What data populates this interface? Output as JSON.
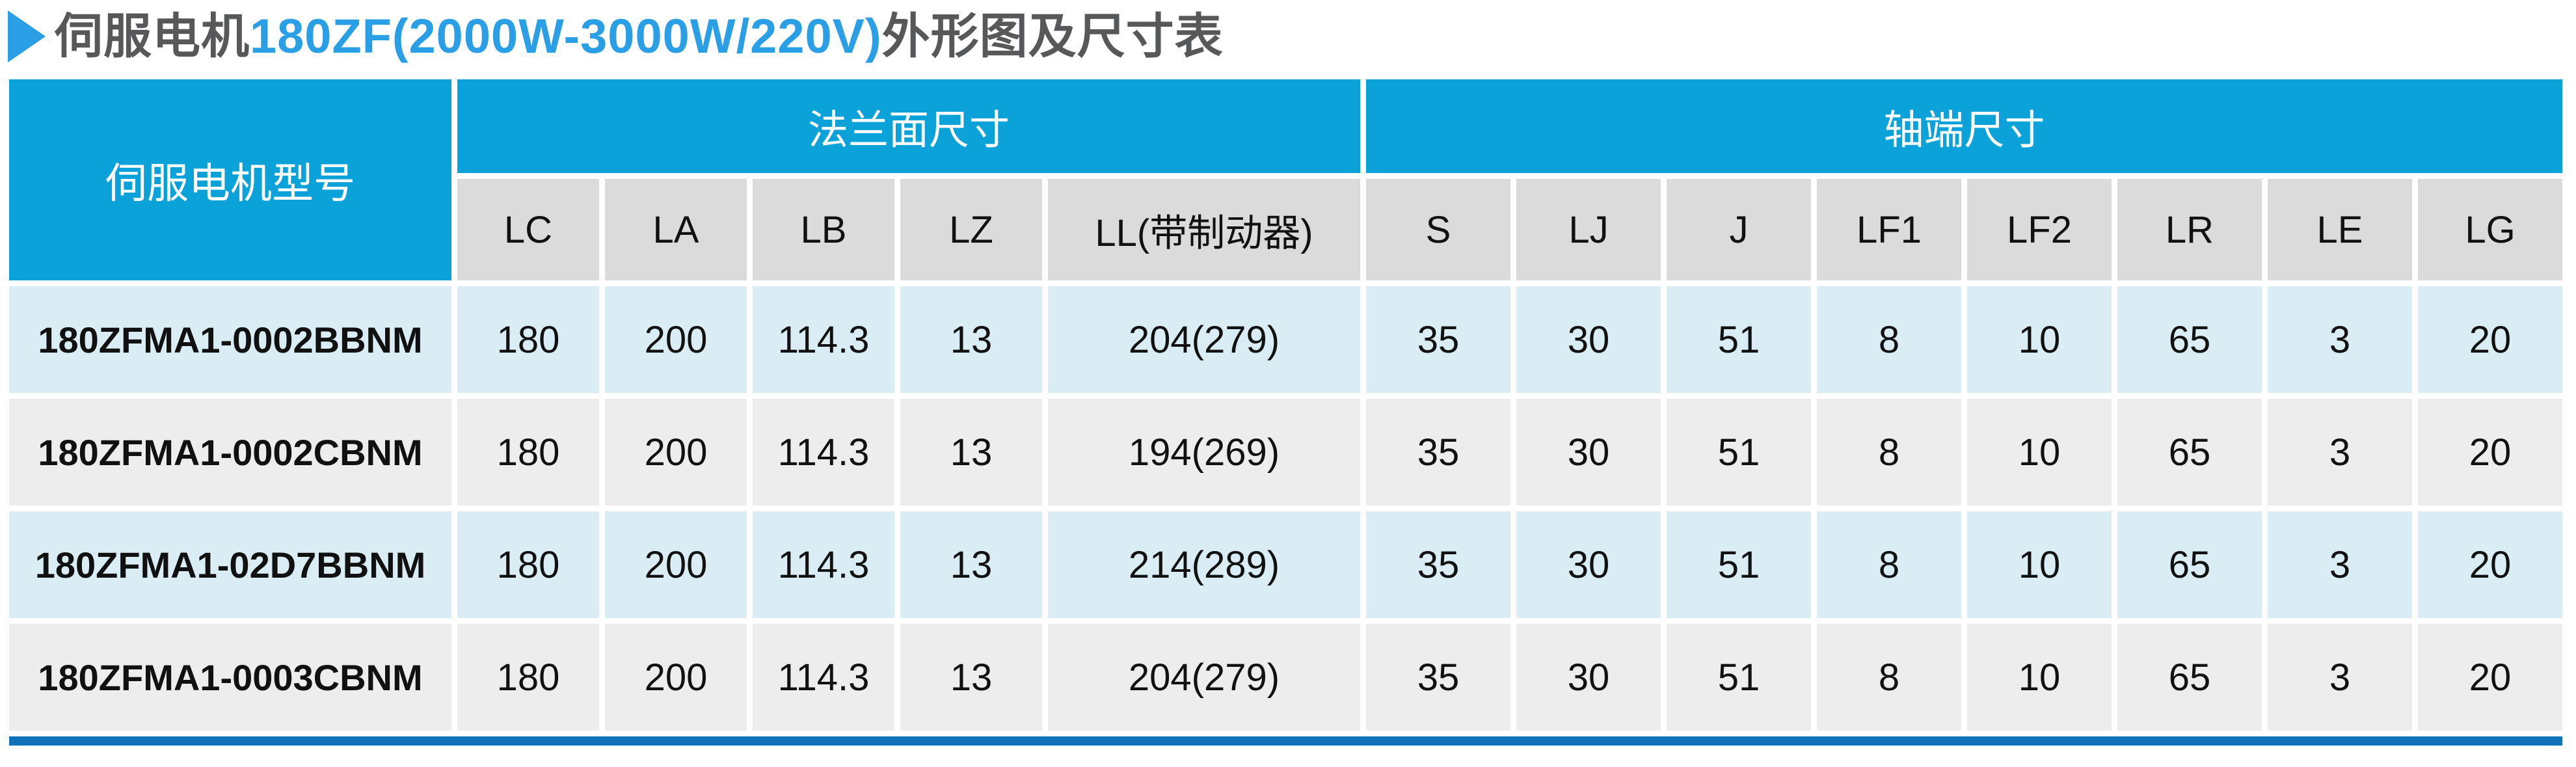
{
  "title": {
    "marker": "right-triangle",
    "prefix": "伺服电机",
    "highlight": "180ZF(2000W-3000W/220V)",
    "suffix": "外形图及尺寸表"
  },
  "colors": {
    "header_blue": "#0aa2d8",
    "accent_blue": "#2b9fe6",
    "title_gray": "#57585a",
    "row_light_blue": "#dbedf4",
    "row_light_gray": "#ededee",
    "subheader_gray": "#dbdbdb",
    "bottom_bar_blue": "#1171b8",
    "cell_text": "#111111"
  },
  "table": {
    "model_header": "伺服电机型号",
    "groups": [
      {
        "label": "法兰面尺寸",
        "columns": [
          "LC",
          "LA",
          "LB",
          "LZ",
          "LL(带制动器)"
        ]
      },
      {
        "label": "轴端尺寸",
        "columns": [
          "S",
          "LJ",
          "J",
          "LF1",
          "LF2",
          "LR",
          "LE",
          "LG"
        ]
      }
    ],
    "rows": [
      {
        "model": "180ZFMA1-0002BBNM",
        "values": [
          "180",
          "200",
          "114.3",
          "13",
          "204(279)",
          "35",
          "30",
          "51",
          "8",
          "10",
          "65",
          "3",
          "20"
        ]
      },
      {
        "model": "180ZFMA1-0002CBNM",
        "values": [
          "180",
          "200",
          "114.3",
          "13",
          "194(269)",
          "35",
          "30",
          "51",
          "8",
          "10",
          "65",
          "3",
          "20"
        ]
      },
      {
        "model": "180ZFMA1-02D7BBNM",
        "values": [
          "180",
          "200",
          "114.3",
          "13",
          "214(289)",
          "35",
          "30",
          "51",
          "8",
          "10",
          "65",
          "3",
          "20"
        ]
      },
      {
        "model": "180ZFMA1-0003CBNM",
        "values": [
          "180",
          "200",
          "114.3",
          "13",
          "204(279)",
          "35",
          "30",
          "51",
          "8",
          "10",
          "65",
          "3",
          "20"
        ]
      }
    ]
  }
}
